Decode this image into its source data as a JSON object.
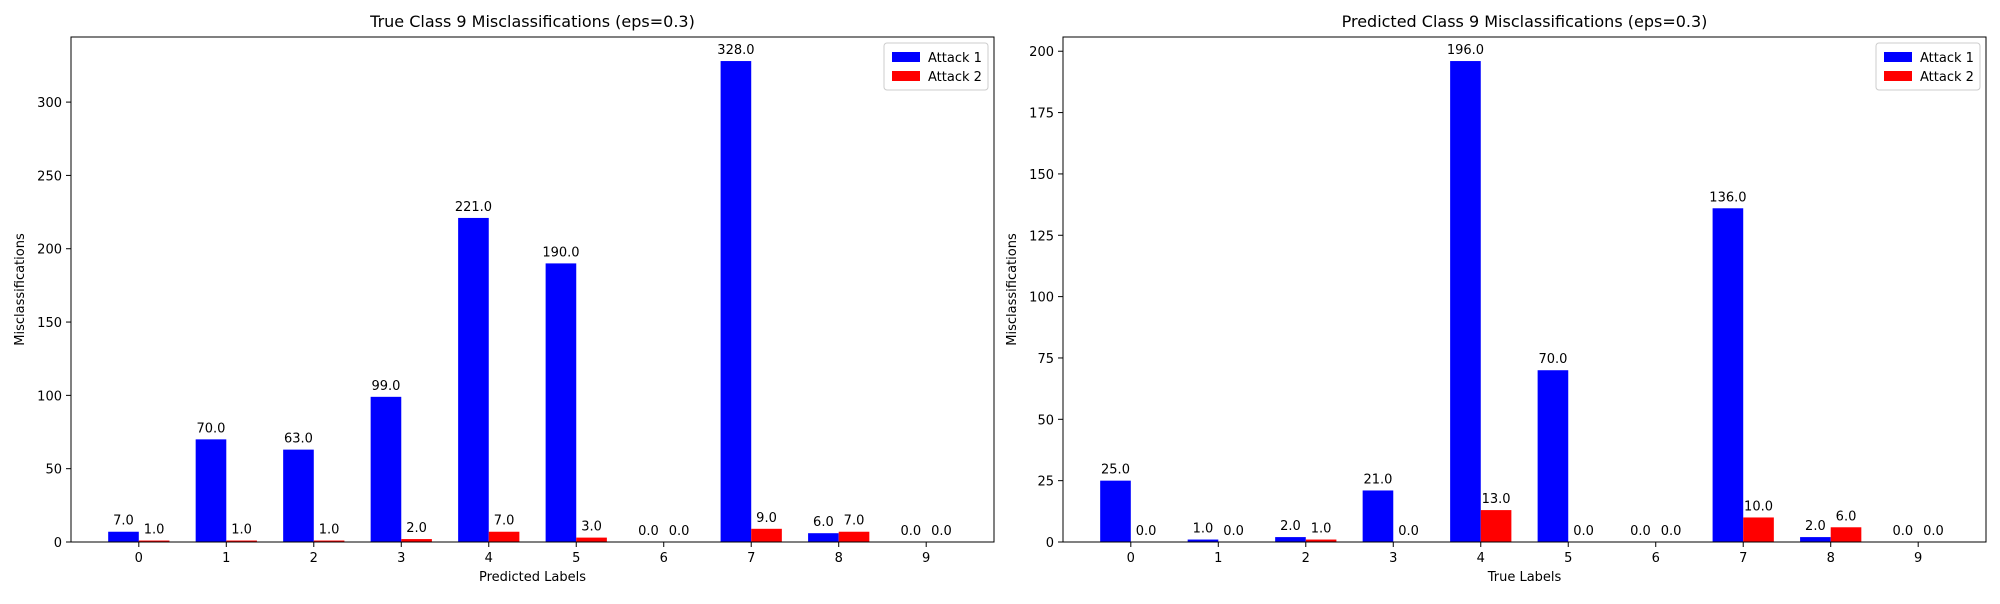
{
  "chart_data": [
    {
      "type": "bar",
      "title": "True Class 9 Misclassifications (eps=0.3)",
      "xlabel": "Predicted Labels",
      "ylabel": "Misclassifications",
      "categories": [
        "0",
        "1",
        "2",
        "3",
        "4",
        "5",
        "6",
        "7",
        "8",
        "9"
      ],
      "series": [
        {
          "name": "Attack 1",
          "color": "#0000ff",
          "values": [
            7,
            70,
            63,
            99,
            221,
            190,
            0,
            328,
            6,
            0
          ]
        },
        {
          "name": "Attack 2",
          "color": "#ff0000",
          "values": [
            1,
            1,
            1,
            2,
            7,
            3,
            0,
            9,
            7,
            0
          ]
        }
      ],
      "ylim": [
        0,
        344.4
      ],
      "yticks": [
        0,
        50,
        100,
        150,
        200,
        250,
        300
      ],
      "legend": "top-right",
      "grid": false
    },
    {
      "type": "bar",
      "title": "Predicted Class 9 Misclassifications (eps=0.3)",
      "xlabel": "True Labels",
      "ylabel": "Misclassifications",
      "categories": [
        "0",
        "1",
        "2",
        "3",
        "4",
        "5",
        "6",
        "7",
        "8",
        "9"
      ],
      "series": [
        {
          "name": "Attack 1",
          "color": "#0000ff",
          "values": [
            25,
            1,
            2,
            21,
            196,
            70,
            0,
            136,
            2,
            0
          ]
        },
        {
          "name": "Attack 2",
          "color": "#ff0000",
          "values": [
            0,
            0,
            1,
            0,
            13,
            0,
            0,
            10,
            6,
            0
          ]
        }
      ],
      "ylim": [
        0,
        205.8
      ],
      "yticks": [
        0,
        25,
        50,
        75,
        100,
        125,
        150,
        175,
        200
      ],
      "legend": "top-right",
      "grid": false
    }
  ]
}
